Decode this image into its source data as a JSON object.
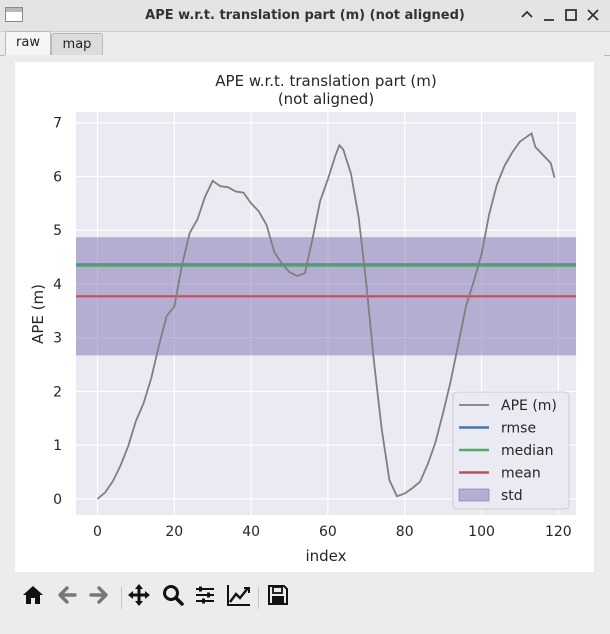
{
  "window": {
    "title": "APE w.r.t. translation part (m) (not aligned)"
  },
  "tabs": [
    {
      "label": "raw",
      "active": true
    },
    {
      "label": "map",
      "active": false
    }
  ],
  "chart_data": {
    "type": "line",
    "title": "APE w.r.t. translation part (m)",
    "subtitle": "(not aligned)",
    "xlabel": "index",
    "ylabel": "APE (m)",
    "xlim": [
      -5.6,
      124.6
    ],
    "ylim": [
      -0.3,
      7.2
    ],
    "xticks": [
      0,
      20,
      40,
      60,
      80,
      100,
      120
    ],
    "yticks": [
      0,
      1,
      2,
      3,
      4,
      5,
      6,
      7
    ],
    "grid": true,
    "legend_position": "lower-right",
    "stats": {
      "rmse": 4.36,
      "median": 4.34,
      "mean": 3.77,
      "std": 1.1
    },
    "series": [
      {
        "name": "APE (m)",
        "color": "#7f7f7f",
        "x": [
          0,
          2,
          4,
          6,
          8,
          10,
          12,
          14,
          16,
          18,
          20,
          22,
          24,
          26,
          28,
          30,
          32,
          34,
          36,
          38,
          40,
          42,
          44,
          46,
          48,
          50,
          52,
          54,
          56,
          58,
          60,
          62,
          63,
          64,
          66,
          68,
          70,
          72,
          74,
          76,
          78,
          80,
          82,
          84,
          86,
          88,
          90,
          92,
          94,
          96,
          98,
          100,
          102,
          104,
          106,
          108,
          110,
          112,
          113,
          114,
          116,
          118,
          119
        ],
        "y": [
          0,
          0.12,
          0.33,
          0.62,
          0.98,
          1.45,
          1.78,
          2.25,
          2.85,
          3.4,
          3.58,
          4.35,
          4.95,
          5.2,
          5.62,
          5.92,
          5.82,
          5.8,
          5.72,
          5.7,
          5.5,
          5.35,
          5.1,
          4.6,
          4.38,
          4.22,
          4.15,
          4.2,
          4.85,
          5.55,
          5.95,
          6.4,
          6.58,
          6.5,
          6.05,
          5.25,
          4.0,
          2.55,
          1.3,
          0.35,
          0.05,
          0.1,
          0.2,
          0.32,
          0.65,
          1.05,
          1.6,
          2.2,
          2.9,
          3.6,
          4.05,
          4.55,
          5.3,
          5.85,
          6.2,
          6.45,
          6.65,
          6.75,
          6.8,
          6.55,
          6.4,
          6.25,
          5.98
        ]
      },
      {
        "name": "rmse",
        "color": "#4c72b0"
      },
      {
        "name": "median",
        "color": "#55a868"
      },
      {
        "name": "mean",
        "color": "#c44e52"
      },
      {
        "name": "std",
        "color": "#8172b2"
      }
    ]
  },
  "toolbar": {
    "items": [
      {
        "name": "home-icon"
      },
      {
        "name": "back-icon"
      },
      {
        "name": "forward-icon"
      },
      {
        "name": "pan-icon"
      },
      {
        "name": "zoom-icon"
      },
      {
        "name": "configure-subplots-icon"
      },
      {
        "name": "edit-axis-icon"
      },
      {
        "name": "save-icon"
      }
    ]
  }
}
